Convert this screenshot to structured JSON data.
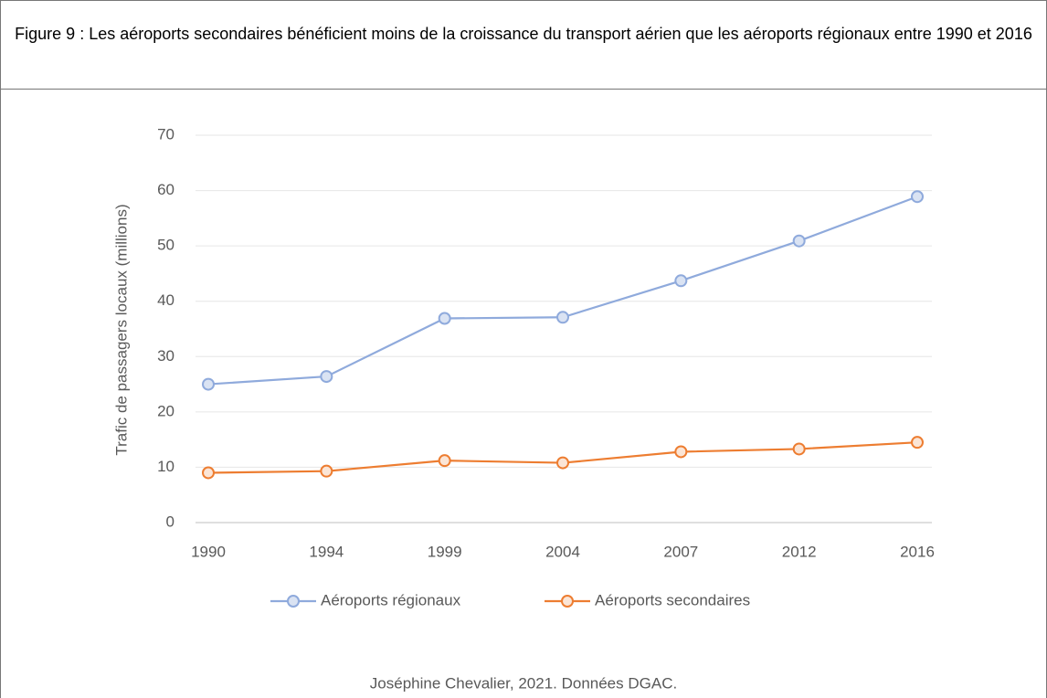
{
  "chart_data": {
    "type": "line",
    "title": "Figure 9 : Les aéroports secondaires bénéficient moins de la croissance du transport aérien que les aéroports régionaux entre 1990 et 2016",
    "ylabel": "Trafic de passagers locaux  (millions)",
    "source": "Joséphine Chevalier, 2021. Données DGAC.",
    "categories": [
      "1990",
      "1994",
      "1999",
      "2004",
      "2007",
      "2012",
      "2016"
    ],
    "series": [
      {
        "name": "Aéroports régionaux",
        "color": "#8faadc",
        "marker_fill": "#dae3f3",
        "values": [
          25,
          26.4,
          36.9,
          37.1,
          43.7,
          50.9,
          58.9
        ]
      },
      {
        "name": "Aéroports secondaires",
        "color": "#ed7d31",
        "marker_fill": "#fbe5d6",
        "values": [
          9,
          9.3,
          11.2,
          10.8,
          12.8,
          13.3,
          14.5
        ]
      }
    ],
    "ylim": [
      0,
      70
    ],
    "yticks": [
      0,
      10,
      20,
      30,
      40,
      50,
      60,
      70
    ],
    "grid": true,
    "legend": "bottom"
  }
}
